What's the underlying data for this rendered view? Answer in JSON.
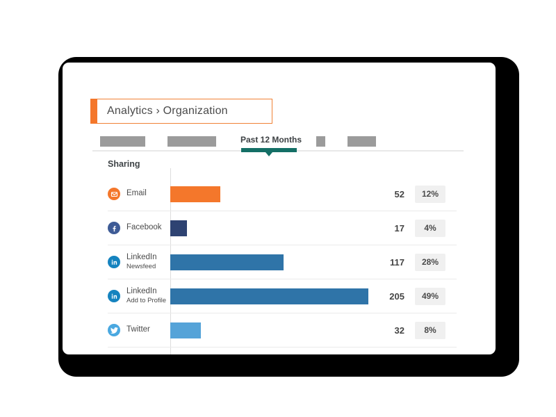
{
  "header": {
    "breadcrumb": "Analytics › Organization"
  },
  "tab_bar": {
    "active_tab": "Past 12 Months",
    "placeholder_tab_count": 4
  },
  "section": {
    "title": "Sharing"
  },
  "chart_data": {
    "type": "bar",
    "orientation": "horizontal",
    "title": "Sharing",
    "categories": [
      "Email",
      "Facebook",
      "LinkedIn Newsfeed",
      "LinkedIn Add to Profile",
      "Twitter"
    ],
    "values": [
      52,
      17,
      117,
      205,
      32
    ],
    "percent_labels": [
      "12%",
      "4%",
      "28%",
      "49%",
      "8%"
    ],
    "xlabel": "",
    "ylabel": "",
    "grid": false,
    "legend": false,
    "rows": [
      {
        "icon": "email-icon",
        "icon_color": "#f4772b",
        "label": "Email",
        "sublabel": "",
        "value": 52,
        "percent": "12%",
        "bar_color": "#f4772b"
      },
      {
        "icon": "facebook-icon",
        "icon_color": "#3e5b96",
        "label": "Facebook",
        "sublabel": "",
        "value": 17,
        "percent": "4%",
        "bar_color": "#2e4372"
      },
      {
        "icon": "linkedin-icon",
        "icon_color": "#1583bf",
        "label": "LinkedIn",
        "sublabel": "Newsfeed",
        "value": 117,
        "percent": "28%",
        "bar_color": "#2f74a8"
      },
      {
        "icon": "linkedin-icon",
        "icon_color": "#1583bf",
        "label": "LinkedIn",
        "sublabel": "Add to Profile",
        "value": 205,
        "percent": "49%",
        "bar_color": "#2f74a8"
      },
      {
        "icon": "twitter-icon",
        "icon_color": "#4aa8e0",
        "label": "Twitter",
        "sublabel": "",
        "value": 32,
        "percent": "8%",
        "bar_color": "#55a3d8"
      }
    ]
  },
  "colors": {
    "accent_orange": "#f4772b",
    "tab_underline_teal": "#146f66",
    "placeholder_gray": "#9b9b9b",
    "shadow": "#000000"
  }
}
